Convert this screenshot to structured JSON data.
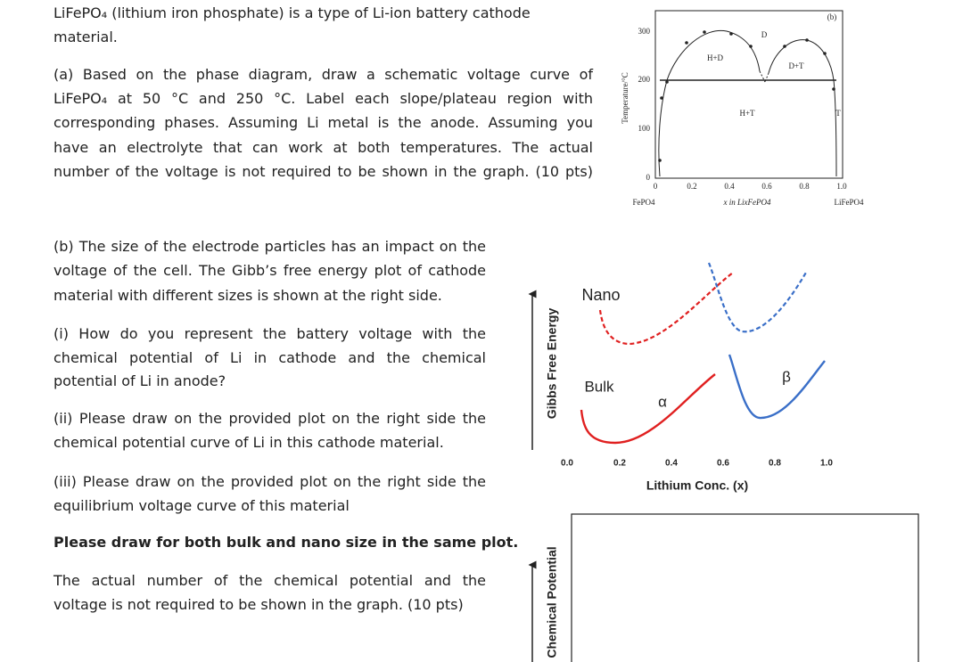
{
  "intro": [
    "LiFePO₄ (lithium iron phosphate) is a type of Li-ion battery cathode",
    "material."
  ],
  "part_a": [
    "(a) Based on the phase diagram, draw a schematic voltage curve of",
    "LiFePO₄ at 50 °C and 250 °C. Label each slope/plateau region with",
    "corresponding phases. Assuming Li metal is the anode. Assuming you",
    "have an electrolyte that can work at both temperatures. The actual",
    "number of the voltage is not required to be shown in the graph. (10 pts)"
  ],
  "part_b": [
    "(b) The size of the electrode particles has an impact on the",
    "voltage of the cell. The Gibb’s free energy plot of cathode",
    "material with different sizes is shown at the right side."
  ],
  "part_b_i": [
    "(i) How do you represent the battery voltage with the",
    "chemical potential of Li in cathode and the chemical",
    "potential of Li in anode?"
  ],
  "part_b_ii": [
    "(ii) Please draw on the provided plot on the right side the",
    "chemical potential curve of Li in this cathode material."
  ],
  "part_b_iii": [
    "(iii) Please draw on the provided plot on the right side the",
    "equilibrium voltage curve of this material"
  ],
  "bold_note": "Please draw for both bulk and nano size in the same plot.",
  "final_note": [
    "The actual number of the chemical potential and the",
    "voltage is not required to be shown in the graph. (10 pts)"
  ],
  "phase_diagram": {
    "panel": "(b)",
    "ylabel": "Temperature/°C",
    "xlabel": "x in LixFePO4",
    "yticks": [
      "0",
      "100",
      "200",
      "300"
    ],
    "xticks": [
      "0",
      "0.2",
      "0.4",
      "0.6",
      "0.8",
      "1.0"
    ],
    "left_end": "FePO4",
    "right_end": "LiFePO4",
    "regions": [
      "H+D",
      "D",
      "D+T",
      "H+T",
      "T"
    ]
  },
  "gibbs_plot": {
    "ylabel": "Gibbs Free Energy",
    "xlabel": "Lithium Conc. (x)",
    "xticks": [
      "0.0",
      "0.2",
      "0.4",
      "0.6",
      "0.8",
      "1.0"
    ],
    "labels": [
      "Nano",
      "Bulk",
      "α",
      "β"
    ]
  },
  "potential_plot": {
    "ylabel": "Chemical Potential"
  }
}
